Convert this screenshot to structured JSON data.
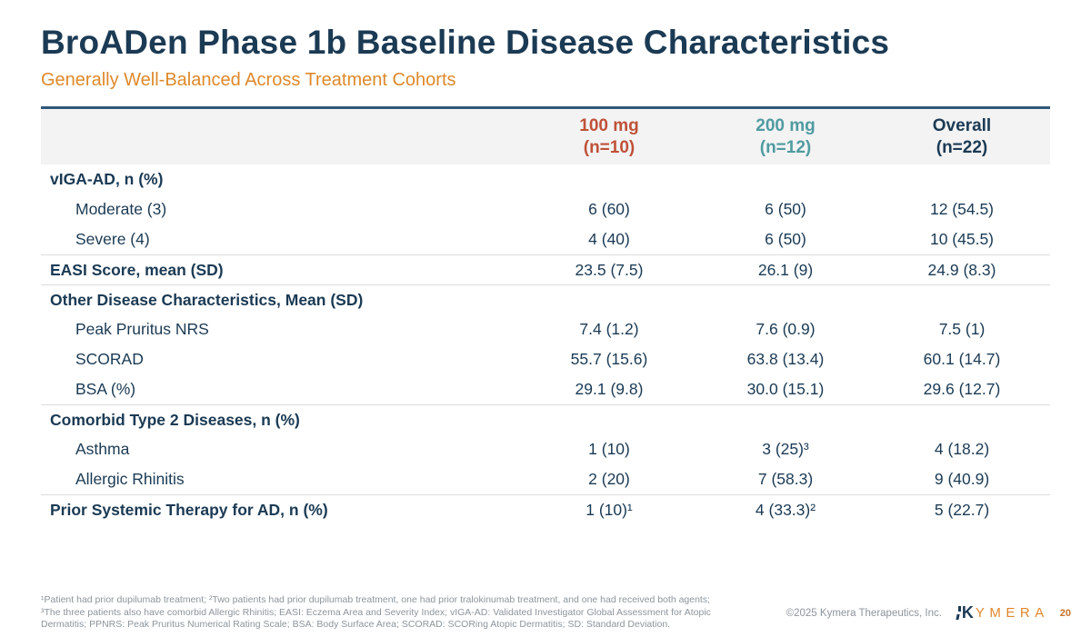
{
  "slide": {
    "title": "BroADen Phase 1b Baseline Disease Characteristics",
    "subtitle": "Generally Well-Balanced Across Treatment Cohorts"
  },
  "colors": {
    "navy": "#1b3a54",
    "orange_subtitle": "#de892a",
    "cohort_100mg": "#bf5138",
    "cohort_200mg": "#4f9ba0",
    "header_bg": "#f3f3f4",
    "table_top_border": "#30587a",
    "footnote_gray": "#8d959c",
    "page_number_orange": "#c87229"
  },
  "table": {
    "columns": [
      {
        "label": "100 mg",
        "sub": "(n=10)"
      },
      {
        "label": "200 mg",
        "sub": "(n=12)"
      },
      {
        "label": "Overall",
        "sub": "(n=22)"
      }
    ],
    "rows": [
      {
        "label": "vIGA-AD, n (%)",
        "values": [
          "",
          "",
          ""
        ]
      },
      {
        "label": "Moderate (3)",
        "values": [
          "6 (60)",
          "6 (50)",
          "12 (54.5)"
        ]
      },
      {
        "label": "Severe (4)",
        "values": [
          "4 (40)",
          "6 (50)",
          "10 (45.5)"
        ]
      },
      {
        "label": "EASI Score, mean (SD)",
        "values": [
          "23.5 (7.5)",
          "26.1 (9)",
          "24.9 (8.3)"
        ]
      },
      {
        "label": "Other Disease Characteristics, Mean (SD)",
        "values": [
          "",
          "",
          ""
        ]
      },
      {
        "label": "Peak Pruritus NRS",
        "values": [
          "7.4 (1.2)",
          "7.6 (0.9)",
          "7.5 (1)"
        ]
      },
      {
        "label": "SCORAD",
        "values": [
          "55.7 (15.6)",
          "63.8 (13.4)",
          "60.1 (14.7)"
        ]
      },
      {
        "label": "BSA (%)",
        "values": [
          "29.1 (9.8)",
          "30.0 (15.1)",
          "29.6 (12.7)"
        ]
      },
      {
        "label": "Comorbid Type 2 Diseases, n (%)",
        "values": [
          "",
          "",
          ""
        ]
      },
      {
        "label": "Asthma",
        "values": [
          "1 (10)",
          "3 (25)³",
          "4 (18.2)"
        ]
      },
      {
        "label": "Allergic Rhinitis",
        "values": [
          "2 (20)",
          "7 (58.3)",
          "9 (40.9)"
        ]
      },
      {
        "label": "Prior Systemic Therapy for AD, n (%)",
        "values": [
          "1 (10)¹",
          "4 (33.3)²",
          "5 (22.7)"
        ]
      }
    ]
  },
  "footnotes": {
    "line1": "¹Patient had prior dupilumab treatment; ²Two patients had prior dupilumab treatment, one had prior tralokinumab treatment, and one had received both agents;",
    "line2": "³The three patients also have comorbid Allergic Rhinitis; EASI: Eczema Area and Severity Index; vIGA-AD: Validated Investigator Global Assessment for Atopic",
    "line3": "Dermatitis; PPNRS: Peak Pruritus Numerical Rating Scale; BSA: Body Surface Area; SCORAD: SCORing Atopic Dermatitis; SD: Standard Deviation."
  },
  "footer": {
    "copyright": "©2025 Kymera Therapeutics, Inc.",
    "logo_k": "K",
    "logo_rest": "YMERA",
    "page": "20"
  }
}
